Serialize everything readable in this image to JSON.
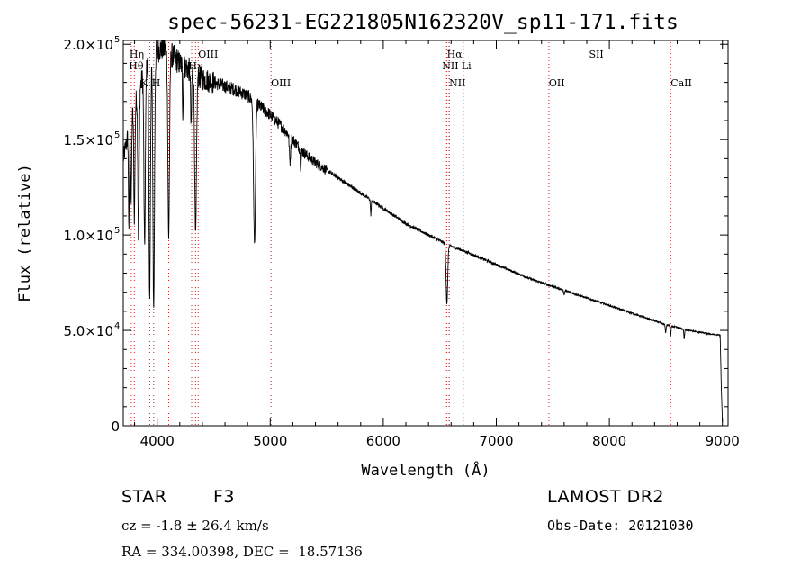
{
  "chart_data": {
    "type": "line",
    "title": "spec-56231-EG221805N162320V_sp11-171.fits",
    "xlabel": "Wavelength (Å)",
    "ylabel": "Flux (relative)",
    "xlim": [
      3700,
      9050
    ],
    "ylim": [
      0,
      202000
    ],
    "x_ticks": [
      4000,
      5000,
      6000,
      7000,
      8000,
      9000
    ],
    "x_tick_labels": [
      "4000",
      "5000",
      "6000",
      "7000",
      "8000",
      "9000"
    ],
    "y_ticks": [
      0,
      50000,
      100000,
      150000,
      200000
    ],
    "y_tick_labels": [
      {
        "mant": "0",
        "exp": ""
      },
      {
        "mant": "5.0×10",
        "exp": "4"
      },
      {
        "mant": "1.0×10",
        "exp": "5"
      },
      {
        "mant": "1.5×10",
        "exp": "5"
      },
      {
        "mant": "2.0×10",
        "exp": "5"
      }
    ],
    "grid": false,
    "series": [
      {
        "name": "",
        "color": "#000000",
        "continuum": [
          [
            3700,
            140000
          ],
          [
            3750,
            155000
          ],
          [
            3800,
            168000
          ],
          [
            3850,
            178000
          ],
          [
            3900,
            188000
          ],
          [
            3950,
            193000
          ],
          [
            4000,
            197000
          ],
          [
            4050,
            198000
          ],
          [
            4100,
            196000
          ],
          [
            4150,
            193000
          ],
          [
            4200,
            190000
          ],
          [
            4250,
            188000
          ],
          [
            4300,
            186000
          ],
          [
            4350,
            184000
          ],
          [
            4400,
            182000
          ],
          [
            4450,
            181000
          ],
          [
            4500,
            180000
          ],
          [
            4600,
            178000
          ],
          [
            4700,
            176000
          ],
          [
            4800,
            173000
          ],
          [
            4900,
            168000
          ],
          [
            5000,
            163000
          ],
          [
            5100,
            157000
          ],
          [
            5200,
            150000
          ],
          [
            5300,
            143000
          ],
          [
            5400,
            138000
          ],
          [
            5500,
            134000
          ],
          [
            5600,
            130000
          ],
          [
            5700,
            126000
          ],
          [
            5800,
            122000
          ],
          [
            5900,
            118000
          ],
          [
            6000,
            114000
          ],
          [
            6100,
            110000
          ],
          [
            6200,
            106000
          ],
          [
            6300,
            103000
          ],
          [
            6400,
            100000
          ],
          [
            6500,
            97000
          ],
          [
            6600,
            94000
          ],
          [
            6700,
            92000
          ],
          [
            6800,
            89500
          ],
          [
            6900,
            87000
          ],
          [
            7000,
            84500
          ],
          [
            7100,
            82000
          ],
          [
            7200,
            79500
          ],
          [
            7300,
            77000
          ],
          [
            7400,
            75000
          ],
          [
            7500,
            73000
          ],
          [
            7600,
            71000
          ],
          [
            7700,
            69000
          ],
          [
            7800,
            67000
          ],
          [
            7900,
            65000
          ],
          [
            8000,
            63000
          ],
          [
            8100,
            61000
          ],
          [
            8200,
            59000
          ],
          [
            8300,
            57000
          ],
          [
            8400,
            55000
          ],
          [
            8500,
            53000
          ],
          [
            8600,
            51500
          ],
          [
            8700,
            50000
          ],
          [
            8800,
            49000
          ],
          [
            8900,
            48000
          ],
          [
            8980,
            47500
          ],
          [
            8990,
            20000
          ],
          [
            9000,
            2000
          ]
        ],
        "absorption_lines": [
          {
            "wl": 3750,
            "depth": 0.3,
            "width": 6
          },
          {
            "wl": 3770,
            "depth": 0.25,
            "width": 6
          },
          {
            "wl": 3798,
            "depth": 0.32,
            "width": 7
          },
          {
            "wl": 3835,
            "depth": 0.4,
            "width": 8
          },
          {
            "wl": 3889,
            "depth": 0.45,
            "width": 9
          },
          {
            "wl": 3934,
            "depth": 0.6,
            "width": 9
          },
          {
            "wl": 3969,
            "depth": 0.62,
            "width": 10
          },
          {
            "wl": 4102,
            "depth": 0.45,
            "width": 10
          },
          {
            "wl": 4227,
            "depth": 0.12,
            "width": 5
          },
          {
            "wl": 4300,
            "depth": 0.15,
            "width": 6
          },
          {
            "wl": 4340,
            "depth": 0.42,
            "width": 11
          },
          {
            "wl": 4861,
            "depth": 0.4,
            "width": 12
          },
          {
            "wl": 5175,
            "depth": 0.08,
            "width": 8
          },
          {
            "wl": 5270,
            "depth": 0.06,
            "width": 6
          },
          {
            "wl": 5890,
            "depth": 0.06,
            "width": 5
          },
          {
            "wl": 6563,
            "depth": 0.3,
            "width": 10
          },
          {
            "wl": 7600,
            "depth": 0.03,
            "width": 6
          },
          {
            "wl": 8498,
            "depth": 0.08,
            "width": 5
          },
          {
            "wl": 8542,
            "depth": 0.1,
            "width": 5
          },
          {
            "wl": 8662,
            "depth": 0.09,
            "width": 5
          }
        ]
      }
    ],
    "spectral_lines": [
      {
        "wl": 3771,
        "row": 1,
        "label": "Hη",
        "dx": -2
      },
      {
        "wl": 3798,
        "row": 2,
        "label": "Hθ",
        "dx": -6
      },
      {
        "wl": 3934,
        "row": 3,
        "label": "K",
        "dx": -10
      },
      {
        "wl": 3969,
        "row": 3,
        "label": "H",
        "dx": -2
      },
      {
        "wl": 4102,
        "row": 0,
        "label": "",
        "dx": 0
      },
      {
        "wl": 4305,
        "row": 2,
        "label": "G",
        "dx": -18
      },
      {
        "wl": 4340,
        "row": 2,
        "label": "Hγ",
        "dx": -8
      },
      {
        "wl": 4363,
        "row": 1,
        "label": "OIII",
        "dx": 0
      },
      {
        "wl": 5007,
        "row": 3,
        "label": "OIII",
        "dx": 0
      },
      {
        "wl": 6548,
        "row": 0,
        "label": "",
        "dx": 0
      },
      {
        "wl": 6563,
        "row": 1,
        "label": "Hα",
        "dx": 0
      },
      {
        "wl": 6583,
        "row": 3,
        "label": "NII",
        "dx": 0
      },
      {
        "wl": 6584,
        "row": 2,
        "label": "NII",
        "dx": -8
      },
      {
        "wl": 6708,
        "row": 2,
        "label": "Li",
        "dx": -2
      },
      {
        "wl": 7465,
        "row": 3,
        "label": "OII",
        "dx": 0
      },
      {
        "wl": 7820,
        "row": 1,
        "label": "SII",
        "dx": 0
      },
      {
        "wl": 8542,
        "row": 3,
        "label": "CaII",
        "dx": 0
      }
    ]
  },
  "info": {
    "class_label": "STAR",
    "subclass": "F3",
    "survey": "LAMOST DR2",
    "cz_text": "cz = -1.8 ± 26.4 km/s",
    "obs_date": "Obs-Date: 20121030",
    "radec": "RA = 334.00398, DEC =  18.57136"
  }
}
